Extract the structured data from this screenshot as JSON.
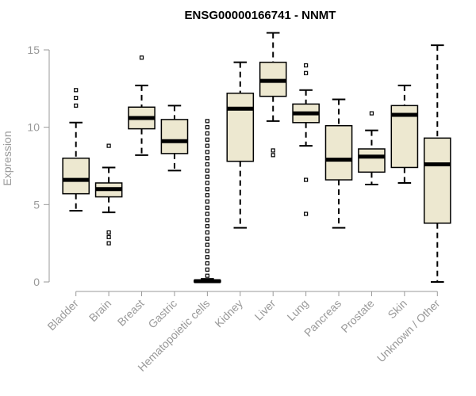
{
  "chart_data": {
    "type": "boxplot",
    "title": "ENSG00000166741 - NNMT",
    "xlabel": "",
    "ylabel": "Expression",
    "ylim": [
      0,
      15.5
    ],
    "yticks": [
      0,
      5,
      10,
      15
    ],
    "box_fill": "#ede8d0",
    "categories": [
      "Bladder",
      "Brain",
      "Breast",
      "Gastric",
      "Hematopoietic cells",
      "Kidney",
      "Liver",
      "Lung",
      "Pancreas",
      "Prostate",
      "Skin",
      "Unknown / Other"
    ],
    "boxes": [
      {
        "q1": 5.7,
        "median": 6.6,
        "q3": 8.0,
        "whisker_low": 4.6,
        "whisker_high": 10.3,
        "outliers": [
          11.4,
          11.9,
          12.4
        ]
      },
      {
        "q1": 5.5,
        "median": 6.0,
        "q3": 6.4,
        "whisker_low": 4.5,
        "whisker_high": 7.4,
        "outliers": [
          2.5,
          2.9,
          3.2,
          8.8
        ]
      },
      {
        "q1": 9.9,
        "median": 10.6,
        "q3": 11.3,
        "whisker_low": 8.2,
        "whisker_high": 12.7,
        "outliers": [
          14.5
        ]
      },
      {
        "q1": 8.3,
        "median": 9.1,
        "q3": 10.5,
        "whisker_low": 7.2,
        "whisker_high": 11.4,
        "outliers": []
      },
      {
        "q1": 0.0,
        "median": 0.05,
        "q3": 0.1,
        "whisker_low": 0.0,
        "whisker_high": 0.2,
        "outliers": [
          0.4,
          0.8,
          1.2,
          1.6,
          2.0,
          2.4,
          2.8,
          3.2,
          3.6,
          4.0,
          4.4,
          4.8,
          5.2,
          5.6,
          6.0,
          6.4,
          6.8,
          7.2,
          7.6,
          8.0,
          8.4,
          8.8,
          9.2,
          9.6,
          10.0,
          10.4
        ]
      },
      {
        "q1": 7.8,
        "median": 11.2,
        "q3": 12.2,
        "whisker_low": 3.5,
        "whisker_high": 14.2,
        "outliers": []
      },
      {
        "q1": 12.0,
        "median": 13.0,
        "q3": 14.2,
        "whisker_low": 10.4,
        "whisker_high": 16.1,
        "outliers": [
          8.2,
          8.5
        ]
      },
      {
        "q1": 10.3,
        "median": 10.9,
        "q3": 11.5,
        "whisker_low": 8.8,
        "whisker_high": 12.4,
        "outliers": [
          4.4,
          6.6,
          13.5,
          14.0
        ]
      },
      {
        "q1": 6.6,
        "median": 7.9,
        "q3": 10.1,
        "whisker_low": 3.5,
        "whisker_high": 11.8,
        "outliers": []
      },
      {
        "q1": 7.1,
        "median": 8.1,
        "q3": 8.6,
        "whisker_low": 6.3,
        "whisker_high": 9.8,
        "outliers": [
          10.9
        ]
      },
      {
        "q1": 7.4,
        "median": 10.8,
        "q3": 11.4,
        "whisker_low": 6.4,
        "whisker_high": 12.7,
        "outliers": []
      },
      {
        "q1": 3.8,
        "median": 7.6,
        "q3": 9.3,
        "whisker_low": 0.0,
        "whisker_high": 15.3,
        "outliers": []
      }
    ]
  }
}
